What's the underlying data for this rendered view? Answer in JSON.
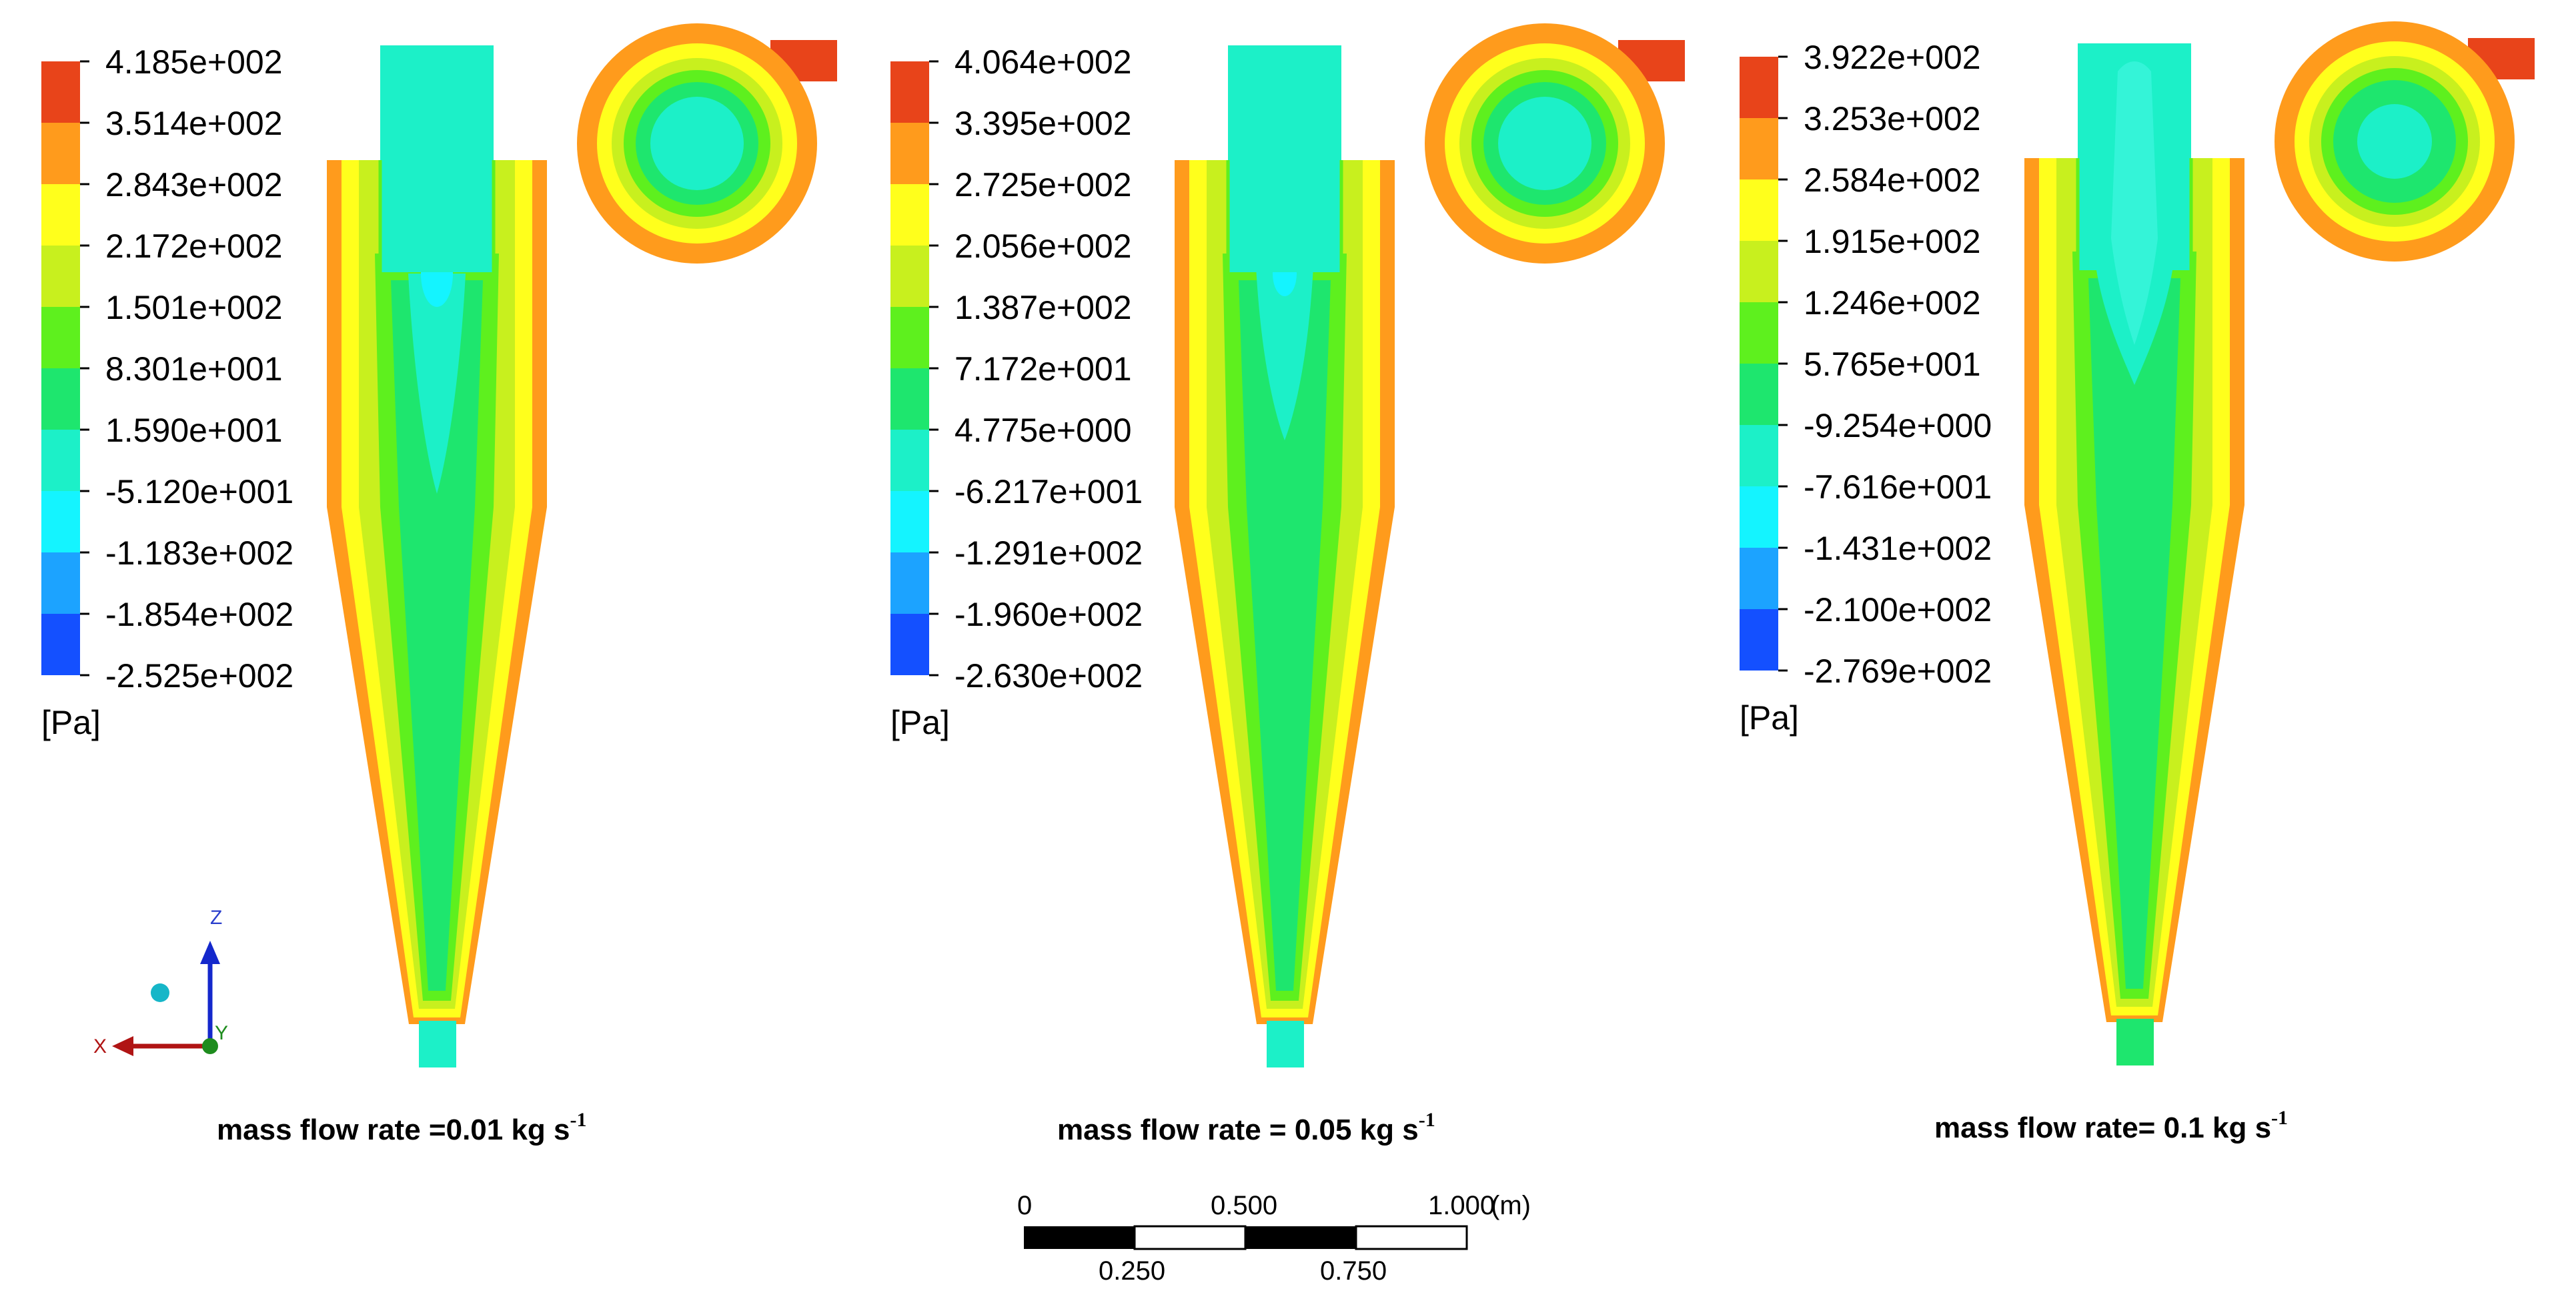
{
  "panels": [
    {
      "id": "panel-1",
      "legend": {
        "labels": [
          "4.185e+002",
          "3.514e+002",
          "2.843e+002",
          "2.172e+002",
          "1.501e+002",
          "8.301e+001",
          "1.590e+001",
          "-5.120e+001",
          "-1.183e+002",
          "-1.854e+002",
          "-2.525e+002"
        ],
        "unit": "[Pa]"
      },
      "caption": {
        "text": "mass flow rate =0.01 kg s",
        "sup": "-1"
      }
    },
    {
      "id": "panel-2",
      "legend": {
        "labels": [
          "4.064e+002",
          "3.395e+002",
          "2.725e+002",
          "2.056e+002",
          "1.387e+002",
          "7.172e+001",
          "4.775e+000",
          "-6.217e+001",
          "-1.291e+002",
          "-1.960e+002",
          "-2.630e+002"
        ],
        "unit": "[Pa]"
      },
      "caption": {
        "text": "mass flow rate = 0.05 kg s",
        "sup": "-1"
      }
    },
    {
      "id": "panel-3",
      "legend": {
        "labels": [
          "3.922e+002",
          "3.253e+002",
          "2.584e+002",
          "1.915e+002",
          "1.246e+002",
          "5.765e+001",
          "-9.254e+000",
          "-7.616e+001",
          "-1.431e+002",
          "-2.100e+002",
          "-2.769e+002"
        ],
        "unit": "[Pa]"
      },
      "caption": {
        "text": "mass flow rate= 0.1 kg s",
        "sup": "-1"
      }
    }
  ],
  "colormap": [
    "#e8441a",
    "#ff9b1c",
    "#ffff1c",
    "#c8f01e",
    "#5ef01e",
    "#1ee66e",
    "#1cf0c8",
    "#14f4ff",
    "#1ca3ff",
    "#1450ff"
  ],
  "axis_triad": {
    "z_label": "Z",
    "x_label": "X",
    "y_label": "Y"
  },
  "scale_bar": {
    "top_labels": [
      "0",
      "0.500",
      "1.000"
    ],
    "bottom_labels": [
      "0.250",
      "0.750"
    ],
    "unit": "(m)"
  }
}
